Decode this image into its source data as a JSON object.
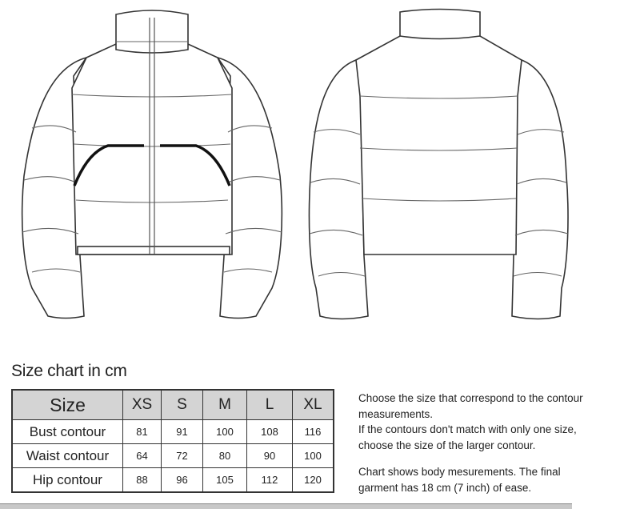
{
  "size_chart": {
    "title": "Size chart in cm",
    "header": [
      "Size",
      "XS",
      "S",
      "M",
      "L",
      "XL"
    ],
    "rows": [
      {
        "label": "Bust contour",
        "values": [
          "81",
          "91",
          "100",
          "108",
          "116"
        ]
      },
      {
        "label": "Waist contour",
        "values": [
          "64",
          "72",
          "80",
          "90",
          "100"
        ]
      },
      {
        "label": "Hip contour",
        "values": [
          "88",
          "96",
          "105",
          "112",
          "120"
        ]
      }
    ]
  },
  "notes": {
    "line1": "Choose the size that correspond to the contour",
    "line2": "measurements.",
    "line3": "If the contours don't match with only one size,",
    "line4": "choose the size of the larger contour.",
    "line5": "Chart shows body mesurements. The final",
    "line6": "garment has 18 cm (7 inch) of ease."
  }
}
